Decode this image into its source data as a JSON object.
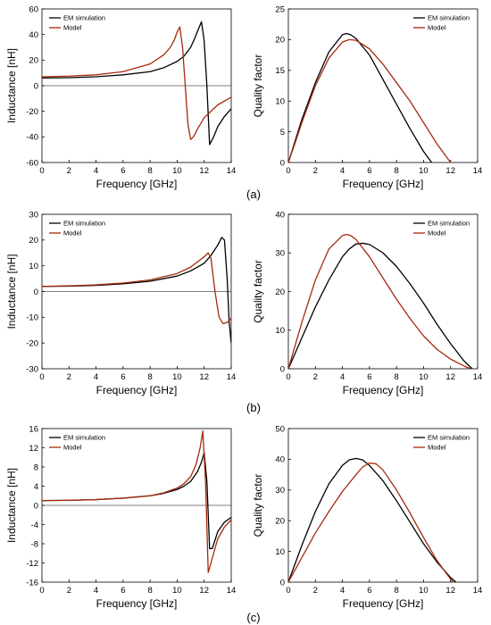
{
  "colors": {
    "em": "#000000",
    "model": "#a52a0a"
  },
  "panel_labels": [
    "(a)",
    "(b)",
    "(c)"
  ],
  "chart_data": [
    {
      "type": "line",
      "xlabel": "Frequency [GHz]",
      "ylabel": "Inductance [nH]",
      "xlim": [
        0,
        14
      ],
      "ylim": [
        -60,
        60
      ],
      "xticks": [
        0,
        2,
        4,
        6,
        8,
        10,
        12,
        14
      ],
      "yticks": [
        -60,
        -40,
        -20,
        0,
        20,
        40,
        60
      ],
      "legend_position": "top-left",
      "series": [
        {
          "name": "EM simulation",
          "color": "#000000",
          "x": [
            0,
            2,
            4,
            6,
            8,
            9,
            10,
            10.5,
            11,
            11.3,
            11.6,
            11.8,
            12,
            12.2,
            12.4,
            12.7,
            13,
            13.5,
            14
          ],
          "y": [
            6,
            6.3,
            7,
            8.5,
            11,
            14,
            19,
            23,
            30,
            37,
            45,
            50,
            35,
            0,
            -46,
            -40,
            -32,
            -24,
            -18
          ]
        },
        {
          "name": "Model",
          "color": "#a52a0a",
          "x": [
            0,
            2,
            4,
            6,
            8,
            9,
            9.5,
            9.8,
            10,
            10.2,
            10.4,
            10.6,
            10.8,
            11,
            11.2,
            11.5,
            12,
            13,
            14
          ],
          "y": [
            7,
            7.5,
            8.5,
            11,
            17,
            24,
            30,
            36,
            42,
            46,
            30,
            0,
            -30,
            -42,
            -40,
            -34,
            -25,
            -15,
            -9
          ]
        }
      ]
    },
    {
      "type": "line",
      "xlabel": "Frequency [GHz]",
      "ylabel": "Quality factor",
      "xlim": [
        0,
        14
      ],
      "ylim": [
        0,
        25
      ],
      "xticks": [
        0,
        2,
        4,
        6,
        8,
        10,
        12,
        14
      ],
      "yticks": [
        0,
        5,
        10,
        15,
        20,
        25
      ],
      "legend_position": "top-right",
      "series": [
        {
          "name": "EM simulation",
          "color": "#000000",
          "x": [
            0,
            0.5,
            1,
            2,
            3,
            4,
            4.3,
            4.6,
            5,
            6,
            7,
            8,
            9,
            10,
            10.6
          ],
          "y": [
            0,
            3.5,
            7,
            13,
            18,
            20.8,
            21,
            20.8,
            20.2,
            17.5,
            13.5,
            9.5,
            5.5,
            1.8,
            0
          ]
        },
        {
          "name": "Model",
          "color": "#a52a0a",
          "x": [
            0,
            0.5,
            1,
            2,
            3,
            4,
            4.5,
            5,
            6,
            7,
            8,
            9,
            10,
            11,
            12
          ],
          "y": [
            0,
            3.2,
            6.5,
            12.5,
            17,
            19.6,
            20,
            19.9,
            18.5,
            16,
            13,
            10,
            6.5,
            3,
            0
          ]
        }
      ]
    },
    {
      "type": "line",
      "xlabel": "Frequency [GHz]",
      "ylabel": "Inductance [nH]",
      "xlim": [
        0,
        14
      ],
      "ylim": [
        -30,
        30
      ],
      "xticks": [
        0,
        2,
        4,
        6,
        8,
        10,
        12,
        14
      ],
      "yticks": [
        -30,
        -20,
        -10,
        0,
        10,
        20,
        30
      ],
      "legend_position": "top-left",
      "series": [
        {
          "name": "EM simulation",
          "color": "#000000",
          "x": [
            0,
            2,
            4,
            6,
            8,
            10,
            11,
            12,
            12.5,
            13,
            13.3,
            13.5,
            13.7,
            13.85,
            14
          ],
          "y": [
            2,
            2.1,
            2.4,
            3,
            4,
            6,
            8,
            11,
            14,
            18,
            21,
            20,
            5,
            -12,
            -20
          ]
        },
        {
          "name": "Model",
          "color": "#a52a0a",
          "x": [
            0,
            2,
            4,
            6,
            8,
            10,
            11,
            11.5,
            12,
            12.3,
            12.5,
            12.8,
            13.1,
            13.4,
            13.7,
            14
          ],
          "y": [
            2,
            2.2,
            2.6,
            3.3,
            4.5,
            7,
            9.5,
            11.5,
            13.5,
            15,
            13,
            0,
            -10,
            -12.5,
            -12,
            -10.5
          ]
        }
      ]
    },
    {
      "type": "line",
      "xlabel": "Frequency [GHz]",
      "ylabel": "Quality factor",
      "xlim": [
        0,
        14
      ],
      "ylim": [
        0,
        40
      ],
      "xticks": [
        0,
        2,
        4,
        6,
        8,
        10,
        12,
        14
      ],
      "yticks": [
        0,
        10,
        20,
        30,
        40
      ],
      "legend_position": "top-right",
      "series": [
        {
          "name": "EM simulation",
          "color": "#000000",
          "x": [
            0,
            0.5,
            1,
            2,
            3,
            4,
            4.5,
            5,
            5.5,
            6,
            7,
            8,
            9,
            10,
            11,
            12,
            13,
            13.6
          ],
          "y": [
            0,
            4,
            8,
            16,
            23,
            29,
            31,
            32.3,
            32.5,
            32.2,
            30,
            26.5,
            22,
            17,
            11.5,
            6.5,
            2,
            0
          ]
        },
        {
          "name": "Model",
          "color": "#a52a0a",
          "x": [
            0,
            0.5,
            1,
            2,
            3,
            4,
            4.3,
            4.6,
            5,
            6,
            7,
            8,
            9,
            10,
            11,
            12,
            13,
            13.5
          ],
          "y": [
            0,
            6,
            12,
            23,
            31,
            34.5,
            34.8,
            34.5,
            33.5,
            29,
            23.5,
            18,
            13,
            8.5,
            5,
            2.5,
            0.7,
            0
          ]
        }
      ]
    },
    {
      "type": "line",
      "xlabel": "Frequency [GHz]",
      "ylabel": "Inductance [nH]",
      "xlim": [
        0,
        14
      ],
      "ylim": [
        -16,
        16
      ],
      "xticks": [
        0,
        2,
        4,
        6,
        8,
        10,
        12,
        14
      ],
      "yticks": [
        -16,
        -12,
        -8,
        -4,
        0,
        4,
        8,
        12,
        16
      ],
      "legend_position": "top-left",
      "series": [
        {
          "name": "EM simulation",
          "color": "#000000",
          "x": [
            0,
            2,
            4,
            6,
            8,
            9,
            10,
            10.5,
            11,
            11.5,
            11.8,
            12,
            12.2,
            12.4,
            12.6,
            13,
            13.5,
            14
          ],
          "y": [
            1,
            1.05,
            1.2,
            1.5,
            2,
            2.5,
            3.3,
            4,
            5,
            7,
            9,
            11,
            5,
            -9,
            -9,
            -5.5,
            -3.5,
            -2.5
          ]
        },
        {
          "name": "Model",
          "color": "#a52a0a",
          "x": [
            0,
            2,
            4,
            6,
            8,
            9,
            10,
            10.5,
            11,
            11.4,
            11.7,
            11.9,
            12.1,
            12.3,
            12.5,
            13,
            13.5,
            14
          ],
          "y": [
            1,
            1.05,
            1.2,
            1.5,
            2,
            2.6,
            3.6,
            4.5,
            6,
            8.5,
            12,
            15.5,
            5,
            -14,
            -12,
            -7,
            -4.5,
            -3
          ]
        }
      ]
    },
    {
      "type": "line",
      "xlabel": "Frequency [GHz]",
      "ylabel": "Quality factor",
      "xlim": [
        0,
        14
      ],
      "ylim": [
        0,
        50
      ],
      "xticks": [
        0,
        2,
        4,
        6,
        8,
        10,
        12,
        14
      ],
      "yticks": [
        0,
        10,
        20,
        30,
        40,
        50
      ],
      "legend_position": "top-right",
      "series": [
        {
          "name": "EM simulation",
          "color": "#000000",
          "x": [
            0,
            0.5,
            1,
            2,
            3,
            4,
            4.5,
            5,
            5.5,
            6,
            7,
            8,
            9,
            10,
            11,
            12,
            12.4
          ],
          "y": [
            0,
            6,
            12,
            23,
            32,
            38,
            39.8,
            40.3,
            39.8,
            38,
            33,
            26.5,
            19.5,
            12.5,
            6.5,
            1.5,
            0
          ]
        },
        {
          "name": "Model",
          "color": "#a52a0a",
          "x": [
            0,
            0.5,
            1,
            2,
            3,
            4,
            5,
            5.5,
            6,
            6.5,
            7,
            8,
            9,
            10,
            11,
            12,
            12.2
          ],
          "y": [
            0,
            4,
            8,
            16,
            23,
            29.5,
            35,
            37.5,
            38.8,
            38.5,
            36.5,
            30,
            22.5,
            14.5,
            7,
            1,
            0
          ]
        }
      ]
    }
  ]
}
